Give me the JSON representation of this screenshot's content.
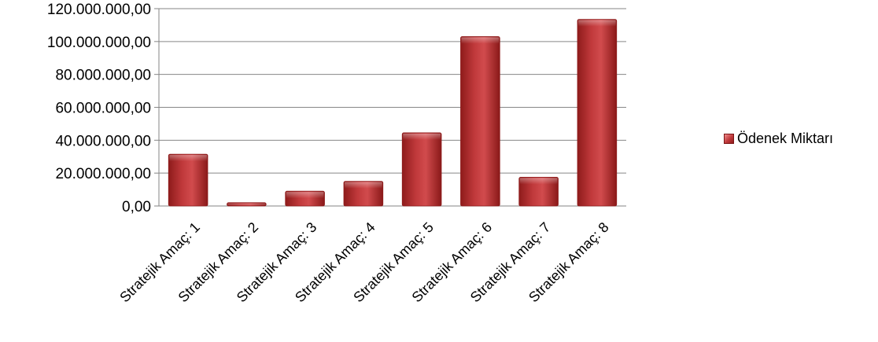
{
  "chart_data": {
    "type": "bar",
    "categories": [
      "Stratejik Amaç: 1",
      "Stratejik Amaç: 2",
      "Stratejik Amaç: 3",
      "Stratejik Amaç: 4",
      "Stratejik Amaç: 5",
      "Stratejik Amaç: 6",
      "Stratejik Amaç: 7",
      "Stratejik Amaç: 8"
    ],
    "series": [
      {
        "name": "Ödenek Miktarı",
        "values": [
          31500000,
          2000000,
          9000000,
          15000000,
          44500000,
          103000000,
          17500000,
          113500000
        ]
      }
    ],
    "yticks": [
      "0,00",
      "20.000.000,00",
      "40.000.000,00",
      "60.000.000,00",
      "80.000.000,00",
      "100.000.000,00",
      "120.000.000,00"
    ],
    "ylim": [
      0,
      120000000
    ],
    "grid": true,
    "legend": "right",
    "colors": {
      "bar": "#c0393b",
      "bar_dark": "#8e1b1b",
      "bar_light": "#f08c8c",
      "grid": "#868686"
    }
  }
}
